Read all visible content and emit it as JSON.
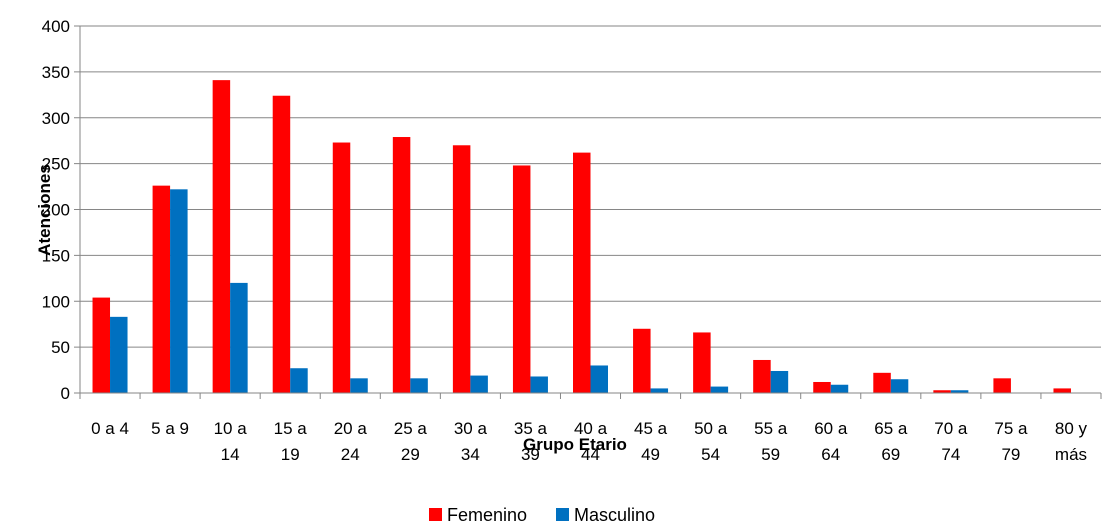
{
  "chart_data": {
    "type": "bar",
    "title": "",
    "xlabel": "Grupo Etario",
    "ylabel": "Atenciones",
    "ylim": [
      0,
      400
    ],
    "yticks": [
      0,
      50,
      100,
      150,
      200,
      250,
      300,
      350,
      400
    ],
    "grid": true,
    "legend_position": "bottom",
    "categories": [
      [
        "0 a 4"
      ],
      [
        "5 a 9"
      ],
      [
        "10 a",
        "14"
      ],
      [
        "15 a",
        "19"
      ],
      [
        "20 a",
        "24"
      ],
      [
        "25 a",
        "29"
      ],
      [
        "30 a",
        "34"
      ],
      [
        "35 a",
        "39"
      ],
      [
        "40 a",
        "44"
      ],
      [
        "45 a",
        "49"
      ],
      [
        "50 a",
        "54"
      ],
      [
        "55 a",
        "59"
      ],
      [
        "60 a",
        "64"
      ],
      [
        "65 a",
        "69"
      ],
      [
        "70 a",
        "74"
      ],
      [
        "75 a",
        "79"
      ],
      [
        "80 y",
        "más"
      ]
    ],
    "series": [
      {
        "name": "Femenino",
        "color": "#ff0000",
        "values": [
          104,
          226,
          341,
          324,
          273,
          279,
          270,
          248,
          262,
          70,
          66,
          36,
          12,
          22,
          3,
          16,
          5
        ]
      },
      {
        "name": "Masculino",
        "color": "#0070c0",
        "values": [
          83,
          222,
          120,
          27,
          16,
          16,
          19,
          18,
          30,
          5,
          7,
          24,
          9,
          15,
          3,
          0,
          0
        ]
      }
    ]
  }
}
